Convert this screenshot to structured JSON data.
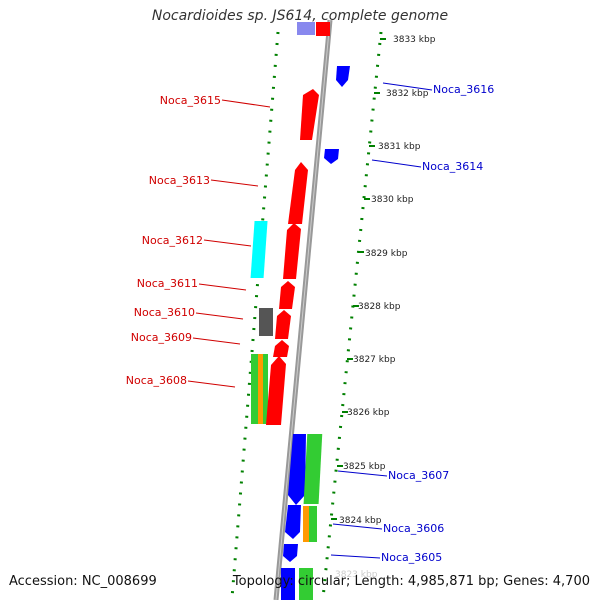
{
  "title": "Nocardioides sp. JS614, complete genome",
  "footer": {
    "accession": "Accession: NC_008699",
    "summary": "Topology: circular; Length: 4,985,871 bp; Genes: 4,700"
  },
  "colors": {
    "forward_label": "#d00000",
    "reverse_label": "#0000cc",
    "axis": "#999999",
    "ruler": "#008000",
    "red": "#ff0000",
    "blue": "#0000ff",
    "green": "#33cc33",
    "orange": "#ff9900",
    "cyan": "#00ffff",
    "gray": "#555555",
    "lavender": "#8888ee"
  },
  "scale": {
    "labels": [
      "3833 kbp",
      "3832 kbp",
      "3831 kbp",
      "3830 kbp",
      "3829 kbp",
      "3828 kbp",
      "3827 kbp",
      "3826 kbp",
      "3825 kbp",
      "3824 kbp",
      "3823 kbp"
    ]
  },
  "genes": {
    "forward": [
      "Noca_3615",
      "Noca_3613",
      "Noca_3612",
      "Noca_3611",
      "Noca_3610",
      "Noca_3609",
      "Noca_3608"
    ],
    "reverse": [
      "Noca_3616",
      "Noca_3614",
      "Noca_3607",
      "Noca_3606",
      "Noca_3605"
    ]
  }
}
